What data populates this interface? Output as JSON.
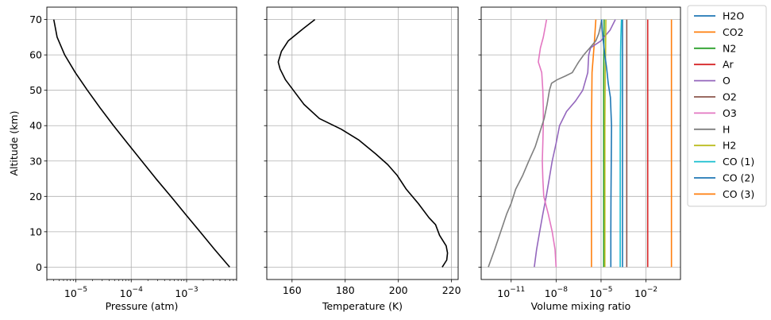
{
  "chart_data": [
    {
      "type": "line",
      "xlabel": "Pressure (atm)",
      "ylabel": "Altitude (km)",
      "xscale": "log",
      "xlim": [
        3e-06,
        0.008
      ],
      "ylim": [
        -3.5,
        73.5
      ],
      "grid": true,
      "xticks": [
        {
          "label": "10",
          "exp": "−5",
          "v": 1e-05
        },
        {
          "label": "10",
          "exp": "−4",
          "v": 0.0001
        },
        {
          "label": "10",
          "exp": "−3",
          "v": 0.001
        }
      ],
      "yticks": [
        "0",
        "10",
        "20",
        "30",
        "40",
        "50",
        "60",
        "70"
      ],
      "series": [
        {
          "color": "#000000",
          "points": [
            [
              0.006,
              0
            ],
            [
              0.0032,
              5
            ],
            [
              0.00175,
              10
            ],
            [
              0.00095,
              15
            ],
            [
              0.00052,
              20
            ],
            [
              0.00028,
              25
            ],
            [
              0.000155,
              30
            ],
            [
              8.6e-05,
              35
            ],
            [
              4.8e-05,
              40
            ],
            [
              2.75e-05,
              45
            ],
            [
              1.62e-05,
              50
            ],
            [
              9.8e-06,
              55
            ],
            [
              6.3e-06,
              60
            ],
            [
              4.6e-06,
              65
            ],
            [
              4e-06,
              70
            ]
          ]
        }
      ]
    },
    {
      "type": "line",
      "xlabel": "Temperature (K)",
      "xlim": [
        150.5,
        222.5
      ],
      "ylim": [
        -3.5,
        73.5
      ],
      "grid": true,
      "xticks": [
        "160",
        "180",
        "200",
        "220"
      ],
      "series": [
        {
          "color": "#000000",
          "points": [
            [
              216.5,
              0
            ],
            [
              218.2,
              2
            ],
            [
              218.5,
              4
            ],
            [
              218,
              6
            ],
            [
              215.5,
              9
            ],
            [
              214,
              12
            ],
            [
              211.5,
              14
            ],
            [
              207.5,
              18
            ],
            [
              203,
              22
            ],
            [
              199.5,
              26
            ],
            [
              196,
              29
            ],
            [
              191.5,
              32
            ],
            [
              185,
              36
            ],
            [
              178.5,
              39
            ],
            [
              170.3,
              42
            ],
            [
              164.5,
              46
            ],
            [
              160.5,
              50
            ],
            [
              157.5,
              53
            ],
            [
              155.5,
              56
            ],
            [
              154.8,
              58
            ],
            [
              156,
              61
            ],
            [
              158.6,
              64
            ],
            [
              163.5,
              67
            ],
            [
              168.6,
              70
            ]
          ]
        }
      ]
    },
    {
      "type": "line",
      "xlabel": "Volume mixing ratio",
      "xscale": "log",
      "xlim": [
        1e-13,
        2.0
      ],
      "ylim": [
        -3.5,
        73.5
      ],
      "grid": true,
      "xticks": [
        {
          "label": "10",
          "exp": "−11",
          "v": 1e-11
        },
        {
          "label": "10",
          "exp": "−8",
          "v": 1e-08
        },
        {
          "label": "10",
          "exp": "−5",
          "v": 1e-05
        },
        {
          "label": "10",
          "exp": "−2",
          "v": 0.01
        }
      ],
      "legend": "outside-right",
      "series": [
        {
          "name": "H2O",
          "color": "#1f77b4",
          "points": [
            [
              0.00027,
              0
            ],
            [
              0.00027,
              10
            ],
            [
              0.00027,
              20
            ],
            [
              0.00027,
              30
            ],
            [
              0.00027,
              40
            ],
            [
              0.00027,
              50
            ],
            [
              0.00027,
              60
            ],
            [
              0.00027,
              70
            ]
          ]
        },
        {
          "name": "CO2",
          "color": "#ff7f0e",
          "points": [
            [
              2.3e-06,
              0
            ],
            [
              2.3e-06,
              20
            ],
            [
              2.3e-06,
              40
            ],
            [
              2.5e-06,
              55
            ],
            [
              3.5e-06,
              63
            ],
            [
              4.5e-06,
              70
            ]
          ]
        },
        {
          "name": "N2",
          "color": "#2ca02c",
          "points": [
            [
              1.5e-05,
              0
            ],
            [
              1.5e-05,
              20
            ],
            [
              1.5e-05,
              40
            ],
            [
              1.5e-05,
              55
            ],
            [
              1.6e-05,
              70
            ]
          ]
        },
        {
          "name": "Ar",
          "color": "#d62728",
          "points": [
            [
              0.013,
              0
            ],
            [
              0.013,
              70
            ]
          ]
        },
        {
          "name": "O",
          "color": "#9467bd",
          "points": [
            [
              3.5e-10,
              0
            ],
            [
              5e-10,
              5
            ],
            [
              8e-10,
              10
            ],
            [
              1.3e-09,
              15
            ],
            [
              2.2e-09,
              20
            ],
            [
              3.5e-09,
              25
            ],
            [
              5.5e-09,
              30
            ],
            [
              1e-08,
              35
            ],
            [
              1.7e-08,
              40
            ],
            [
              5e-08,
              44
            ],
            [
              2e-07,
              47
            ],
            [
              6e-07,
              50
            ],
            [
              1.3e-06,
              55
            ],
            [
              1.5e-06,
              60
            ],
            [
              2e-06,
              62
            ],
            [
              1e-05,
              64
            ],
            [
              4e-05,
              67
            ],
            [
              9e-05,
              70
            ]
          ]
        },
        {
          "name": "O2",
          "color": "#8c564b",
          "points": [
            [
              0.00052,
              0
            ],
            [
              0.00052,
              70
            ]
          ]
        },
        {
          "name": "O3",
          "color": "#e377c2",
          "points": [
            [
              1e-08,
              0
            ],
            [
              8.5e-09,
              5
            ],
            [
              5.5e-09,
              10
            ],
            [
              3e-09,
              15
            ],
            [
              1.5e-09,
              20
            ],
            [
              1.3e-09,
              25
            ],
            [
              1.2e-09,
              30
            ],
            [
              1.3e-09,
              35
            ],
            [
              1.4e-09,
              40
            ],
            [
              1.4e-09,
              45
            ],
            [
              1.3e-09,
              50
            ],
            [
              1.1e-09,
              55
            ],
            [
              6.5e-10,
              58
            ],
            [
              9e-10,
              62
            ],
            [
              1.4e-09,
              65
            ],
            [
              1.9e-09,
              68
            ],
            [
              2.3e-09,
              70
            ]
          ]
        },
        {
          "name": "H",
          "color": "#7f7f7f",
          "points": [
            [
              3e-13,
              0
            ],
            [
              8e-13,
              5
            ],
            [
              2e-12,
              10
            ],
            [
              5e-12,
              15
            ],
            [
              1e-11,
              18
            ],
            [
              2e-11,
              22
            ],
            [
              6e-11,
              26
            ],
            [
              1.5e-10,
              30
            ],
            [
              4e-10,
              34
            ],
            [
              8e-10,
              38
            ],
            [
              1.6e-09,
              42
            ],
            [
              2.5e-09,
              46
            ],
            [
              3.6e-09,
              50
            ],
            [
              5e-09,
              52
            ],
            [
              1.2e-08,
              53
            ],
            [
              4e-08,
              54
            ],
            [
              1.2e-07,
              55
            ],
            [
              2.3e-07,
              57
            ],
            [
              3.2e-07,
              58
            ],
            [
              7e-07,
              60
            ],
            [
              1.8e-06,
              62
            ],
            [
              4.5e-06,
              64
            ],
            [
              7e-06,
              66
            ],
            [
              9e-06,
              68
            ],
            [
              1.1e-05,
              70
            ]
          ]
        },
        {
          "name": "H2",
          "color": "#bcbd22",
          "points": [
            [
              1.8e-05,
              0
            ],
            [
              1.8e-05,
              20
            ],
            [
              1.8e-05,
              40
            ],
            [
              1.9e-05,
              55
            ],
            [
              2e-05,
              60
            ],
            [
              2.1e-05,
              70
            ]
          ]
        },
        {
          "name": "CO (1)",
          "color": "#17becf",
          "points": [
            [
              0.00019,
              0
            ],
            [
              0.00019,
              20
            ],
            [
              0.00019,
              40
            ],
            [
              0.0002,
              50
            ],
            [
              0.0002,
              60
            ],
            [
              0.00021,
              65
            ],
            [
              0.00023,
              70
            ]
          ]
        },
        {
          "name": "CO (2)",
          "color": "#1f77b4",
          "points": [
            [
              4.5e-05,
              0
            ],
            [
              4.5e-05,
              10
            ],
            [
              4.6e-05,
              20
            ],
            [
              4.8e-05,
              30
            ],
            [
              5e-05,
              40
            ],
            [
              4.2e-05,
              48
            ],
            [
              3e-05,
              52
            ],
            [
              2.4e-05,
              56
            ],
            [
              1.8e-05,
              60
            ],
            [
              1.4e-05,
              64
            ],
            [
              1.2e-05,
              67
            ],
            [
              1.1e-05,
              70
            ]
          ]
        },
        {
          "name": "CO (3)",
          "color": "#ff7f0e",
          "points": [
            [
              0.5,
              0
            ],
            [
              0.5,
              70
            ]
          ]
        }
      ]
    }
  ]
}
